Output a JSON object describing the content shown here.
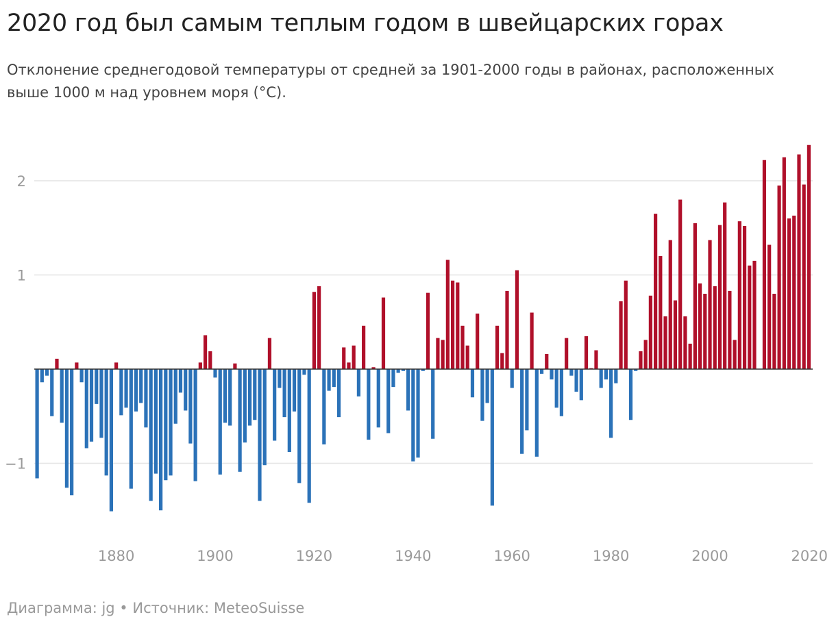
{
  "chart_data": {
    "type": "bar",
    "title": "2020 год был самым теплым годом в швейцарских горах",
    "subtitle": "Отклонение среднегодовой температуры от средней за 1901-2000 годы в районах, расположенных выше 1000 м над уровнем моря (°C).",
    "xlabel": "",
    "ylabel": "",
    "ylim": [
      -1.8,
      2.4
    ],
    "yticks": [
      2,
      1,
      0,
      -1
    ],
    "ytick_labels": [
      "2",
      "1",
      "",
      "−1"
    ],
    "xlim": [
      1863,
      2020
    ],
    "xticks": [
      1880,
      1900,
      1920,
      1940,
      1960,
      1980,
      2000,
      2020
    ],
    "xtick_labels": [
      "1880",
      "1900",
      "1920",
      "1940",
      "1960",
      "1980",
      "2000",
      "2020"
    ],
    "positive_color": "#b0102a",
    "negative_color": "#2b72b8",
    "grid": true,
    "start_year": 1864,
    "values": [
      -1.16,
      -0.14,
      -0.07,
      -0.5,
      0.11,
      -0.57,
      -1.26,
      -1.34,
      0.07,
      -0.14,
      -0.84,
      -0.77,
      -0.37,
      -0.73,
      -1.13,
      -1.51,
      0.07,
      -0.49,
      -0.41,
      -1.27,
      -0.45,
      -0.36,
      -0.62,
      -1.4,
      -1.11,
      -1.5,
      -1.18,
      -1.13,
      -0.58,
      -0.25,
      -0.44,
      -0.79,
      -1.19,
      0.07,
      0.36,
      0.19,
      -0.09,
      -1.12,
      -0.57,
      -0.6,
      0.06,
      -1.09,
      -0.78,
      -0.6,
      -0.54,
      -1.4,
      -1.02,
      0.33,
      -0.76,
      -0.2,
      -0.51,
      -0.88,
      -0.45,
      -1.21,
      -0.06,
      -1.42,
      0.82,
      0.88,
      -0.8,
      -0.23,
      -0.19,
      -0.51,
      0.23,
      0.07,
      0.25,
      -0.29,
      0.46,
      -0.75,
      0.02,
      -0.62,
      0.76,
      -0.68,
      -0.19,
      -0.04,
      -0.02,
      -0.44,
      -0.98,
      -0.94,
      -0.02,
      0.81,
      -0.74,
      0.33,
      0.31,
      1.16,
      0.94,
      0.92,
      0.46,
      0.25,
      -0.3,
      0.59,
      -0.55,
      -0.36,
      -1.45,
      0.46,
      0.17,
      0.83,
      -0.2,
      1.05,
      -0.9,
      -0.65,
      0.6,
      -0.93,
      -0.05,
      0.16,
      -0.11,
      -0.41,
      -0.5,
      0.33,
      -0.07,
      -0.24,
      -0.33,
      0.35,
      0.01,
      0.2,
      -0.2,
      -0.11,
      -0.73,
      -0.15,
      0.72,
      0.94,
      -0.54,
      -0.02,
      0.19,
      0.31,
      0.78,
      1.65,
      1.2,
      0.56,
      1.37,
      0.73,
      1.8,
      0.56,
      0.27,
      1.55,
      0.91,
      0.8,
      1.37,
      0.88,
      1.53,
      1.77,
      0.83,
      0.31,
      1.57,
      1.52,
      1.1,
      1.15,
      0.0,
      2.22,
      1.32,
      0.8,
      1.95,
      2.25,
      1.6,
      1.63,
      2.28,
      1.96,
      2.38
    ]
  },
  "footer": "Диаграмма: jg • Источник: MeteoSuisse"
}
